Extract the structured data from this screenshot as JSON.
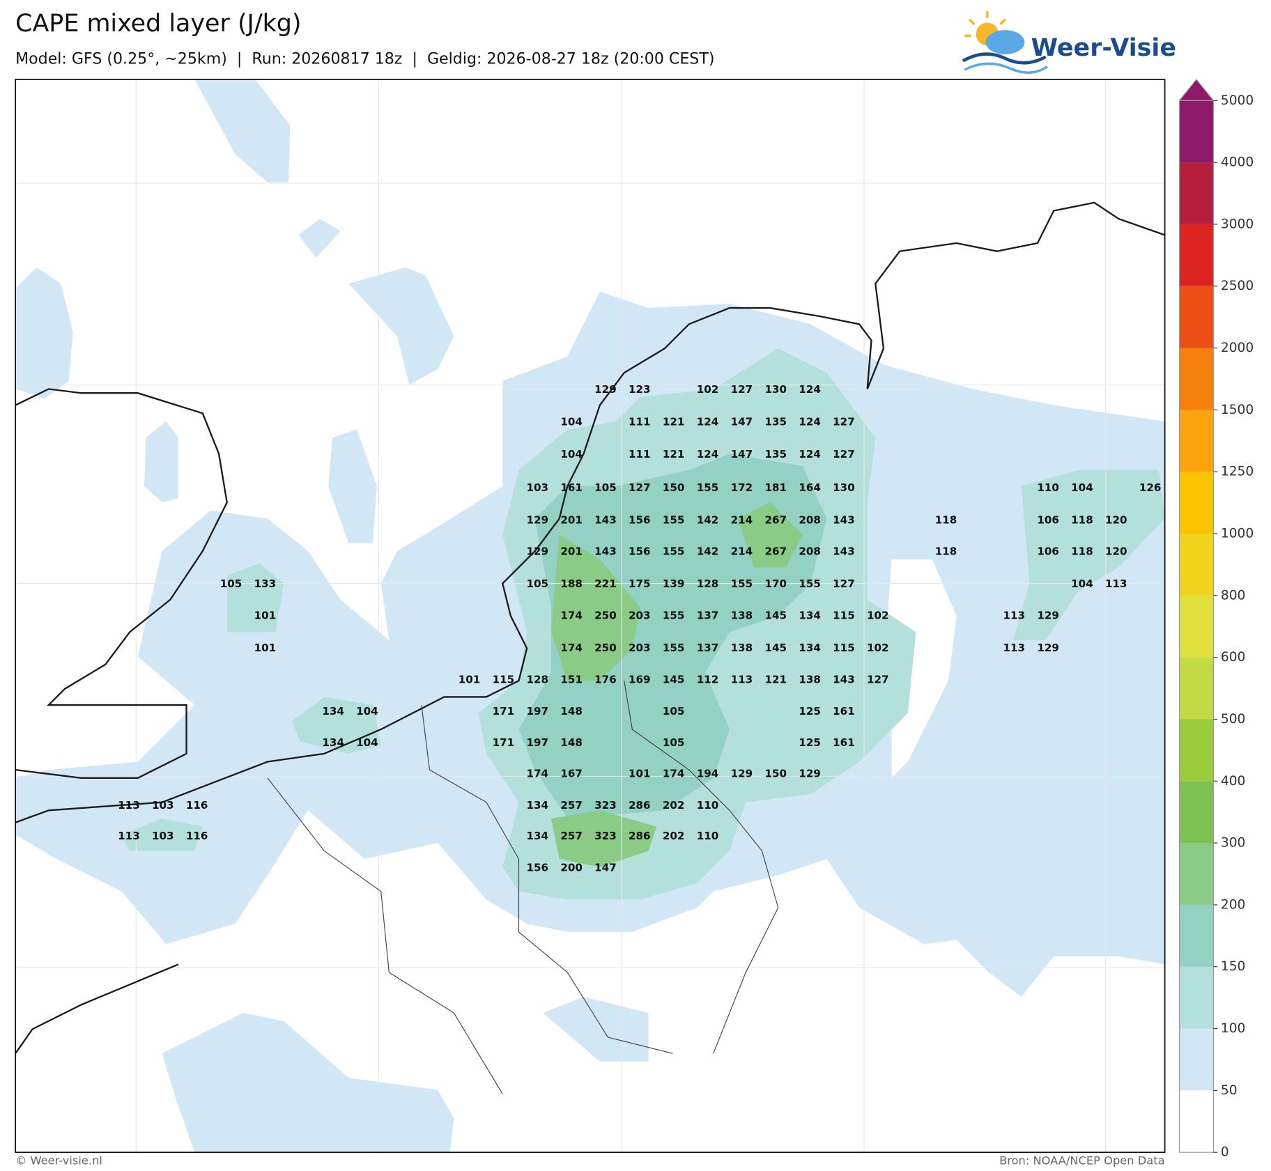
{
  "header": {
    "title": "CAPE mixed layer (J/kg)",
    "subtitle": "Model: GFS (0.25°, ~25km)  |  Run: 20260817 18z  |  Geldig: 2026-08-27 18z (20:00 CEST)",
    "logo": "Weer-Visie"
  },
  "map": {
    "labels": [
      [
        129,
        123,
        102,
        127,
        130,
        124
      ],
      [
        104,
        111,
        121,
        124,
        147,
        135,
        124,
        127
      ],
      [
        104,
        111,
        121,
        124,
        147,
        135,
        124,
        127
      ],
      [
        103,
        161,
        105,
        127,
        150,
        155,
        172,
        181,
        164,
        130,
        110,
        104,
        126
      ],
      [
        129,
        201,
        143,
        156,
        155,
        142,
        214,
        267,
        208,
        143,
        118,
        106,
        118,
        120
      ],
      [
        129,
        201,
        143,
        156,
        155,
        142,
        214,
        267,
        208,
        143,
        118,
        106,
        118,
        120
      ],
      [
        105,
        133,
        105,
        188,
        221,
        175,
        139,
        128,
        155,
        170,
        155,
        127,
        104,
        113
      ],
      [
        101,
        174,
        250,
        203,
        155,
        137,
        138,
        145,
        134,
        115,
        102,
        113,
        129
      ],
      [
        101,
        174,
        250,
        203,
        155,
        137,
        138,
        145,
        134,
        115,
        102,
        113,
        129
      ],
      [
        101,
        115,
        128,
        151,
        176,
        169,
        145,
        112,
        113,
        121,
        138,
        143,
        127
      ],
      [
        134,
        104,
        171,
        197,
        148,
        105,
        125,
        161
      ],
      [
        134,
        104,
        171,
        197,
        148,
        105,
        125,
        161
      ],
      [
        174,
        167,
        101,
        174,
        194,
        129,
        150,
        129
      ],
      [
        113,
        103,
        116,
        134,
        257,
        323,
        286,
        202,
        110
      ],
      [
        113,
        103,
        116,
        134,
        257,
        323,
        286,
        202,
        110
      ],
      [
        156,
        200,
        147
      ]
    ],
    "colorbar": {
      "levels": [
        0,
        50,
        100,
        150,
        200,
        300,
        400,
        500,
        600,
        800,
        1000,
        1250,
        1500,
        2000,
        2500,
        3000,
        4000,
        5000
      ],
      "colors": [
        "#ffffff",
        "#d2e7f6",
        "#b4e0dc",
        "#92d1c3",
        "#8acb85",
        "#7cc151",
        "#9bcc3c",
        "#c3da45",
        "#dfe03c",
        "#f2d41c",
        "#fcc400",
        "#fca40f",
        "#f7800d",
        "#ec4f14",
        "#dc2320",
        "#b51f3d",
        "#8c1a68"
      ]
    }
  },
  "footer": {
    "left": "© Weer-visie.nl",
    "right": "Bron: NOAA/NCEP Open Data"
  }
}
